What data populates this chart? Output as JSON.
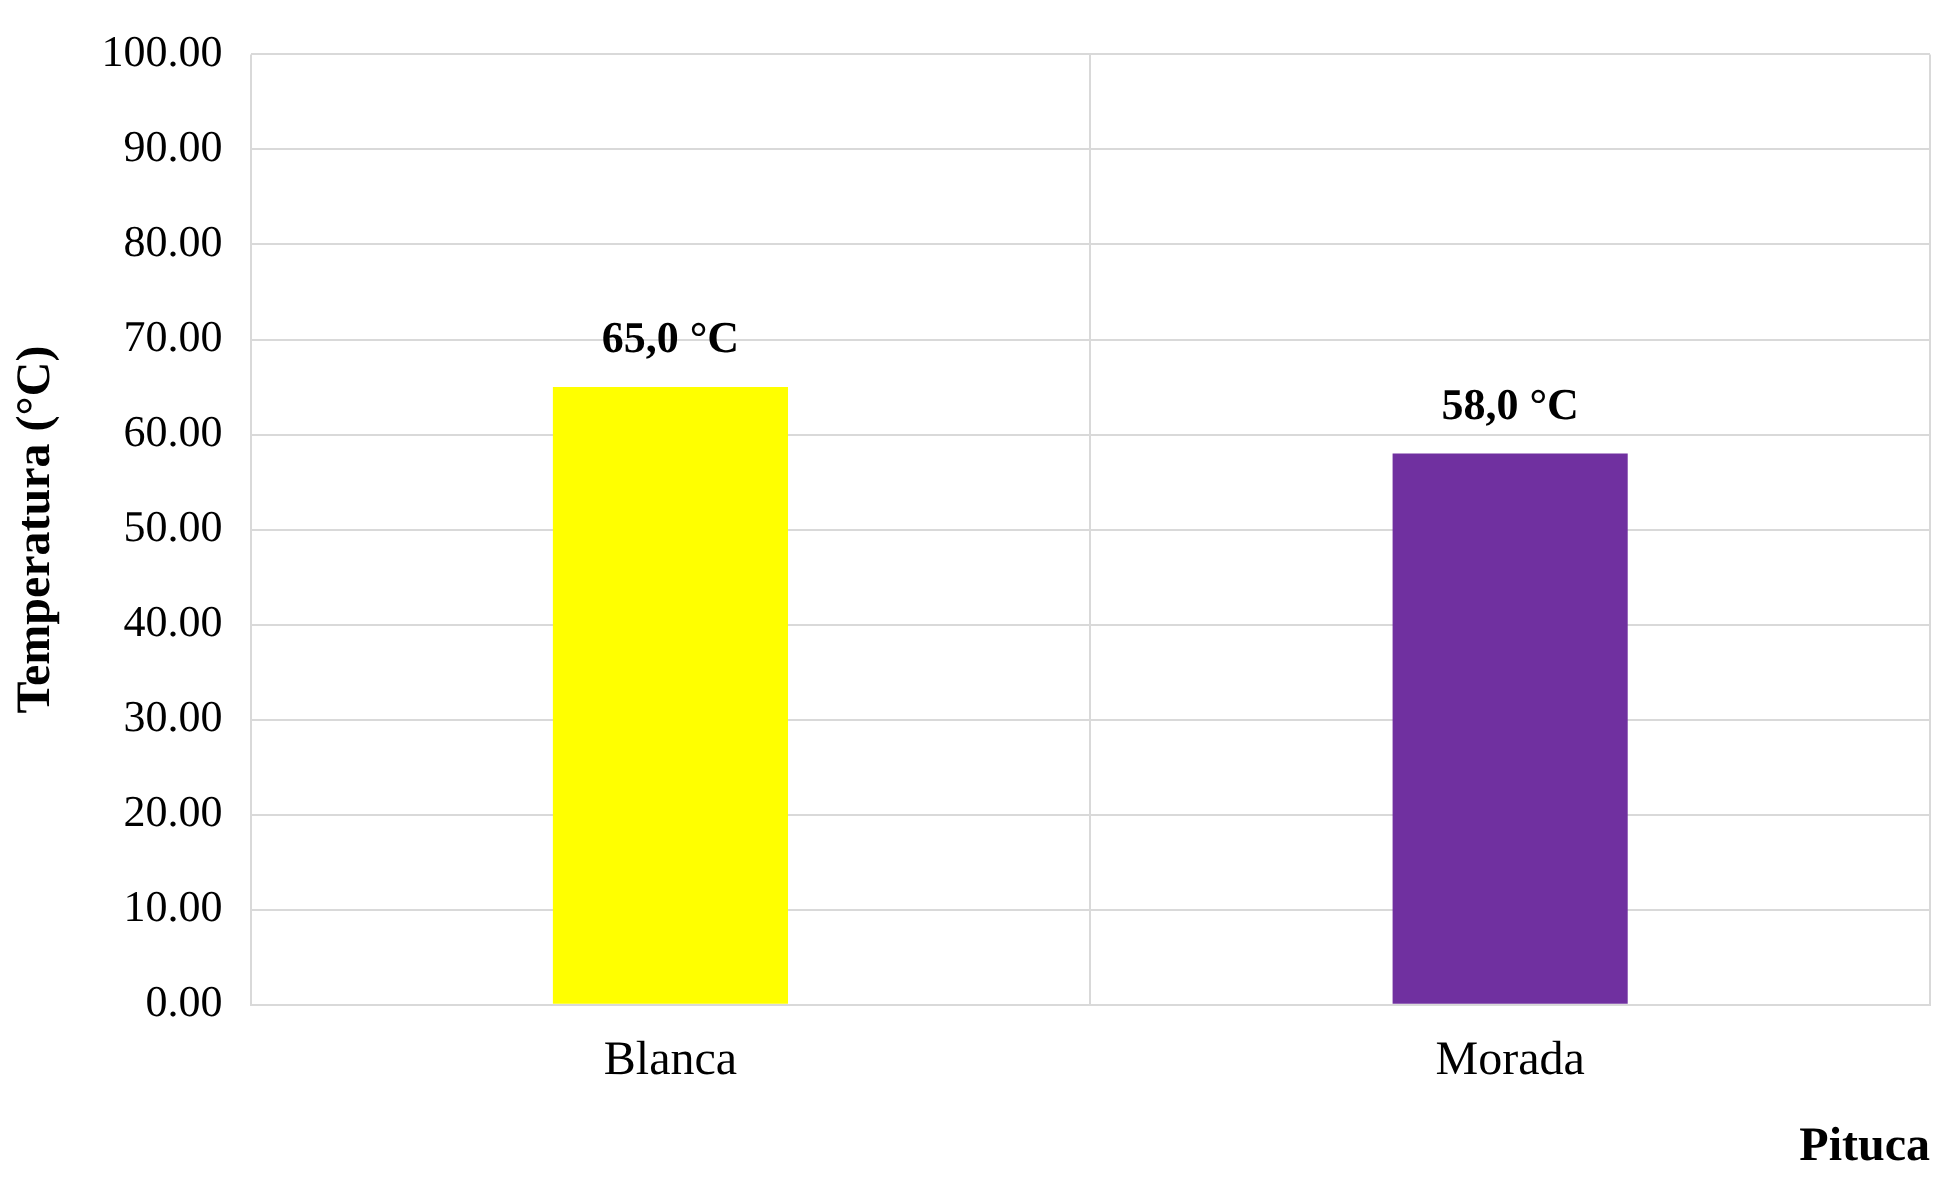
{
  "chart_data": {
    "type": "bar",
    "ylabel": "Temperatura (°C)",
    "xlabel": "Pituca",
    "categories": [
      "Blanca",
      "Morada"
    ],
    "values": [
      65,
      58
    ],
    "colors": [
      "#ffff00",
      "#7030a0"
    ],
    "value_labels": [
      "65,0 °C",
      "58,0 °C"
    ],
    "ylim": [
      0,
      100
    ],
    "yticks": [
      {
        "value": 0,
        "label": "0.00"
      },
      {
        "value": 10,
        "label": "10.00"
      },
      {
        "value": 20,
        "label": "20.00"
      },
      {
        "value": 30,
        "label": "30.00"
      },
      {
        "value": 40,
        "label": "40.00"
      },
      {
        "value": 50,
        "label": "50.00"
      },
      {
        "value": 60,
        "label": "60.00"
      },
      {
        "value": 70,
        "label": "70.00"
      },
      {
        "value": 80,
        "label": "80.00"
      },
      {
        "value": 90,
        "label": "90.00"
      },
      {
        "value": 100,
        "label": "100.00"
      }
    ],
    "grid": true,
    "legend": false
  }
}
